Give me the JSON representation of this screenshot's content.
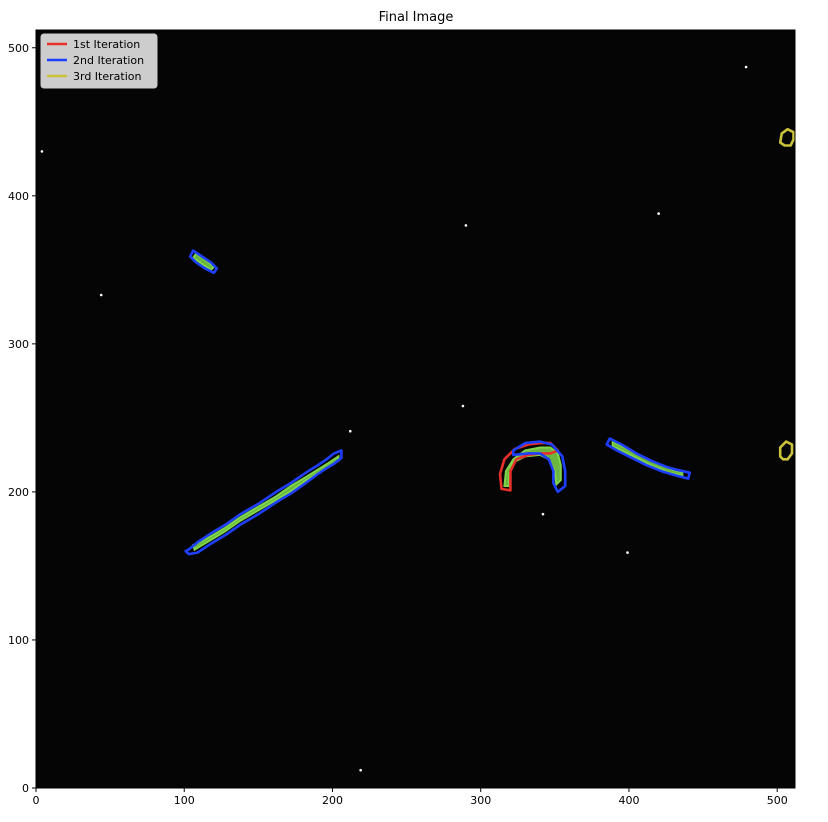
{
  "chart_data": {
    "type": "image",
    "title": "Final Image",
    "xlim": [
      0,
      512
    ],
    "ylim": [
      0,
      512
    ],
    "xticks": [
      0,
      100,
      200,
      300,
      400,
      500
    ],
    "yticks": [
      0,
      100,
      200,
      300,
      400,
      500
    ],
    "legend": {
      "placement": "top-left",
      "entries": [
        {
          "label": "1st Iteration",
          "color": "#e8302a"
        },
        {
          "label": "2nd Iteration",
          "color": "#1f3fff"
        },
        {
          "label": "3rd Iteration",
          "color": "#c9c23a"
        }
      ]
    },
    "colors": {
      "background": "#050505",
      "fill": "#7fd64a"
    },
    "contours": [
      {
        "iteration": "1st Iteration",
        "points": [
          [
            314,
            202
          ],
          [
            313,
            212
          ],
          [
            316,
            222
          ],
          [
            323,
            229
          ],
          [
            332,
            232
          ],
          [
            340,
            233
          ],
          [
            347,
            233
          ],
          [
            352,
            228
          ],
          [
            347,
            226
          ],
          [
            340,
            226
          ],
          [
            332,
            225
          ],
          [
            324,
            222
          ],
          [
            320,
            214
          ],
          [
            320,
            206
          ],
          [
            320,
            201
          ],
          [
            314,
            202
          ]
        ]
      },
      {
        "iteration": "2nd Iteration",
        "points": [
          [
            103,
            161
          ],
          [
            109,
            166
          ],
          [
            118,
            172
          ],
          [
            128,
            178
          ],
          [
            138,
            185
          ],
          [
            150,
            192
          ],
          [
            162,
            200
          ],
          [
            172,
            206
          ],
          [
            182,
            213
          ],
          [
            190,
            218
          ],
          [
            196,
            222
          ],
          [
            201,
            226
          ],
          [
            206,
            228
          ],
          [
            206,
            223
          ],
          [
            201,
            219
          ],
          [
            196,
            216
          ],
          [
            190,
            212
          ],
          [
            182,
            206
          ],
          [
            172,
            199
          ],
          [
            162,
            193
          ],
          [
            150,
            185
          ],
          [
            138,
            178
          ],
          [
            128,
            171
          ],
          [
            118,
            165
          ],
          [
            109,
            159
          ],
          [
            103,
            158
          ],
          [
            101,
            160
          ],
          [
            103,
            161
          ]
        ]
      },
      {
        "iteration": "2nd Iteration",
        "points": [
          [
            106,
            363
          ],
          [
            112,
            359
          ],
          [
            118,
            355
          ],
          [
            122,
            351
          ],
          [
            120,
            348
          ],
          [
            114,
            351
          ],
          [
            108,
            355
          ],
          [
            104,
            359
          ],
          [
            106,
            363
          ]
        ]
      },
      {
        "iteration": "2nd Iteration",
        "points": [
          [
            322,
            228
          ],
          [
            330,
            233
          ],
          [
            340,
            234
          ],
          [
            348,
            232
          ],
          [
            355,
            224
          ],
          [
            357,
            214
          ],
          [
            357,
            204
          ],
          [
            352,
            200
          ],
          [
            349,
            206
          ],
          [
            349,
            214
          ],
          [
            346,
            222
          ],
          [
            340,
            226
          ],
          [
            332,
            226
          ],
          [
            322,
            225
          ],
          [
            322,
            228
          ]
        ]
      },
      {
        "iteration": "2nd Iteration",
        "points": [
          [
            387,
            236
          ],
          [
            395,
            232
          ],
          [
            405,
            226
          ],
          [
            415,
            221
          ],
          [
            425,
            217
          ],
          [
            432,
            215
          ],
          [
            441,
            213
          ],
          [
            440,
            209
          ],
          [
            432,
            211
          ],
          [
            422,
            214
          ],
          [
            412,
            218
          ],
          [
            402,
            223
          ],
          [
            392,
            228
          ],
          [
            385,
            232
          ],
          [
            387,
            236
          ]
        ]
      },
      {
        "iteration": "3rd Iteration",
        "points": [
          [
            502,
            436
          ],
          [
            503,
            442
          ],
          [
            507,
            445
          ],
          [
            511,
            443
          ],
          [
            511,
            438
          ],
          [
            509,
            434
          ],
          [
            505,
            434
          ],
          [
            502,
            436
          ]
        ]
      },
      {
        "iteration": "3rd Iteration",
        "points": [
          [
            502,
            224
          ],
          [
            502,
            230
          ],
          [
            506,
            234
          ],
          [
            510,
            232
          ],
          [
            510,
            226
          ],
          [
            507,
            222
          ],
          [
            504,
            222
          ],
          [
            502,
            224
          ]
        ]
      }
    ],
    "green_regions": [
      {
        "points": [
          [
            106,
            164
          ],
          [
            118,
            170
          ],
          [
            128,
            176
          ],
          [
            138,
            183
          ],
          [
            150,
            190
          ],
          [
            162,
            197
          ],
          [
            172,
            204
          ],
          [
            182,
            210
          ],
          [
            190,
            215
          ],
          [
            198,
            220
          ],
          [
            204,
            224
          ],
          [
            204,
            221
          ],
          [
            197,
            217
          ],
          [
            189,
            212
          ],
          [
            181,
            207
          ],
          [
            171,
            200
          ],
          [
            161,
            194
          ],
          [
            149,
            187
          ],
          [
            137,
            180
          ],
          [
            127,
            173
          ],
          [
            117,
            167
          ],
          [
            107,
            161
          ],
          [
            106,
            164
          ]
        ]
      },
      {
        "points": [
          [
            108,
            361
          ],
          [
            114,
            357
          ],
          [
            120,
            352
          ],
          [
            118,
            350
          ],
          [
            112,
            354
          ],
          [
            106,
            358
          ],
          [
            108,
            361
          ]
        ]
      },
      {
        "points": [
          [
            316,
            204
          ],
          [
            317,
            214
          ],
          [
            322,
            222
          ],
          [
            330,
            228
          ],
          [
            340,
            230
          ],
          [
            347,
            230
          ],
          [
            352,
            226
          ],
          [
            354,
            218
          ],
          [
            354,
            208
          ],
          [
            351,
            205
          ],
          [
            350,
            214
          ],
          [
            346,
            222
          ],
          [
            340,
            225
          ],
          [
            330,
            224
          ],
          [
            322,
            220
          ],
          [
            319,
            212
          ],
          [
            319,
            204
          ],
          [
            316,
            204
          ]
        ]
      },
      {
        "points": [
          [
            389,
            234
          ],
          [
            397,
            230
          ],
          [
            407,
            225
          ],
          [
            417,
            220
          ],
          [
            427,
            216
          ],
          [
            436,
            213
          ],
          [
            436,
            211
          ],
          [
            427,
            213
          ],
          [
            417,
            217
          ],
          [
            407,
            222
          ],
          [
            397,
            227
          ],
          [
            389,
            231
          ],
          [
            389,
            234
          ]
        ]
      }
    ],
    "bright_points": [
      [
        4,
        430
      ],
      [
        44,
        333
      ],
      [
        212,
        241
      ],
      [
        288,
        258
      ],
      [
        342,
        185
      ],
      [
        399,
        159
      ],
      [
        420,
        388
      ],
      [
        479,
        487
      ],
      [
        219,
        12
      ],
      [
        290,
        380
      ]
    ]
  }
}
